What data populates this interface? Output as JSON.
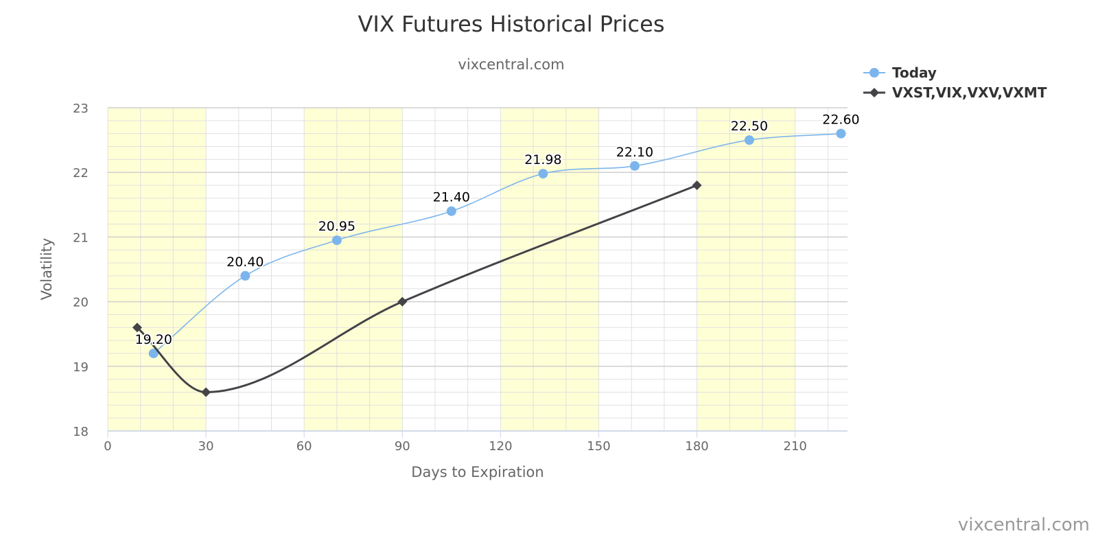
{
  "chart_data": {
    "type": "line",
    "title": "VIX Futures Historical Prices",
    "subtitle": "vixcentral.com",
    "xlabel": "Days to Expiration",
    "ylabel": "Volatility",
    "xlim": [
      0,
      226
    ],
    "ylim": [
      18,
      23
    ],
    "x_ticks": [
      0,
      30,
      60,
      90,
      120,
      150,
      180,
      210
    ],
    "y_ticks": [
      18,
      19,
      20,
      21,
      22,
      23
    ],
    "grid": true,
    "legend_position": "top-right",
    "shaded_bands": [
      [
        0,
        30
      ],
      [
        60,
        90
      ],
      [
        120,
        150
      ],
      [
        180,
        210
      ]
    ],
    "colors": {
      "band": "#ffffd5",
      "grid": "#e0e0e0",
      "today": "#7cb5ec",
      "index": "#434348"
    },
    "series": [
      {
        "name": "Today",
        "marker": "circle",
        "x": [
          14,
          42,
          70,
          105,
          133,
          161,
          196,
          224
        ],
        "y": [
          19.2,
          20.4,
          20.95,
          21.4,
          21.98,
          22.1,
          22.5,
          22.6
        ],
        "labels": [
          "19.20",
          "20.40",
          "20.95",
          "21.40",
          "21.98",
          "22.10",
          "22.50",
          "22.60"
        ]
      },
      {
        "name": "VXST,VIX,VXV,VXMT",
        "marker": "diamond",
        "x": [
          9,
          30,
          90,
          180
        ],
        "y": [
          19.6,
          18.6,
          20.0,
          21.8
        ]
      }
    ],
    "credit": "vixcentral.com"
  }
}
